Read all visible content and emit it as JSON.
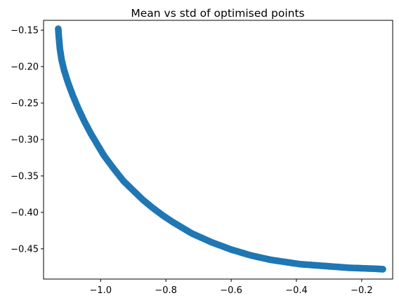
{
  "chart_data": {
    "type": "scatter",
    "title": "Mean vs std of optimised points",
    "xlabel": "",
    "ylabel": "",
    "xlim": [
      -1.175,
      -0.105
    ],
    "ylim": [
      -0.4915,
      -0.1365
    ],
    "x_ticks": [
      -1.0,
      -0.8,
      -0.6,
      -0.4,
      -0.2
    ],
    "x_tick_labels": [
      "−1.0",
      "−0.8",
      "−0.6",
      "−0.4",
      "−0.2"
    ],
    "y_ticks": [
      -0.15,
      -0.2,
      -0.25,
      -0.3,
      -0.35,
      -0.4,
      -0.45
    ],
    "y_tick_labels": [
      "−0.15",
      "−0.20",
      "−0.25",
      "−0.30",
      "−0.35",
      "−0.40",
      "−0.45"
    ],
    "grid": false,
    "legend": "none",
    "point_color": "#1f77b4",
    "series": [
      {
        "x": [
          -1.13,
          -1.128,
          -1.125,
          -1.12,
          -1.112,
          -1.1,
          -1.085,
          -1.068,
          -1.05,
          -1.03,
          -1.01,
          -0.99,
          -0.96,
          -0.93,
          -0.9,
          -0.87,
          -0.84,
          -0.81,
          -0.78,
          -0.75,
          -0.72,
          -0.69,
          -0.66,
          -0.63,
          -0.6,
          -0.57,
          -0.54,
          -0.51,
          -0.48,
          -0.45,
          -0.42,
          -0.39,
          -0.36,
          -0.33,
          -0.3,
          -0.27,
          -0.24,
          -0.21,
          -0.18,
          -0.15,
          -0.135
        ],
        "y": [
          -0.148,
          -0.16,
          -0.175,
          -0.19,
          -0.205,
          -0.222,
          -0.24,
          -0.258,
          -0.275,
          -0.292,
          -0.307,
          -0.322,
          -0.34,
          -0.357,
          -0.37,
          -0.383,
          -0.394,
          -0.404,
          -0.413,
          -0.421,
          -0.429,
          -0.435,
          -0.441,
          -0.446,
          -0.451,
          -0.455,
          -0.459,
          -0.462,
          -0.465,
          -0.467,
          -0.469,
          -0.471,
          -0.472,
          -0.473,
          -0.474,
          -0.475,
          -0.476,
          -0.4765,
          -0.477,
          -0.4775,
          -0.478
        ]
      }
    ]
  }
}
